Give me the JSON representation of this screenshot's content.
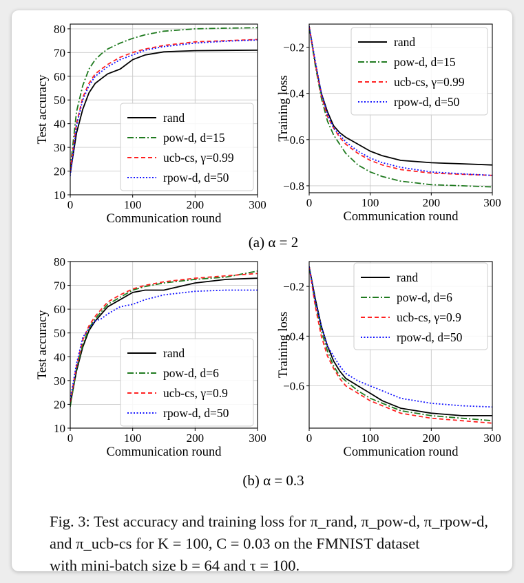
{
  "figure": {
    "subcaption_a": "(a) α = 2",
    "subcaption_b": "(b) α = 0.3",
    "caption_lines": [
      "Fig. 3: Test accuracy and training loss for π_rand, π_pow-d, π_rpow-d,",
      "and π_ucb-cs for K = 100, C = 0.03 on the FMNIST dataset",
      "with mini-batch size b = 64 and τ = 100."
    ]
  },
  "colors": {
    "rand": "#000000",
    "powd": "#1f7a1f",
    "ucb": "#ff2020",
    "rpowd": "#1414ff"
  },
  "chart_data": [
    {
      "id": "a-acc",
      "type": "line",
      "xlabel": "Communication round",
      "ylabel": "Test accuracy",
      "xlim": [
        0,
        300
      ],
      "ylim": [
        10,
        82
      ],
      "xticks": [
        0,
        100,
        200,
        300
      ],
      "yticks": [
        10,
        20,
        30,
        40,
        50,
        60,
        70,
        80
      ],
      "grid": true,
      "legend": "lower-right",
      "x": [
        0,
        10,
        20,
        30,
        40,
        50,
        60,
        80,
        100,
        120,
        150,
        200,
        250,
        300
      ],
      "series": [
        {
          "name": "rand",
          "key": "rand",
          "style": "solid",
          "values": [
            19,
            36,
            46,
            53,
            57,
            59,
            61,
            63,
            67,
            69,
            70.3,
            70.8,
            70.9,
            71
          ]
        },
        {
          "name": "pow-d, d=15",
          "key": "powd",
          "style": "dashdot",
          "values": [
            21,
            45,
            56,
            63,
            67,
            69.5,
            71.5,
            74,
            76,
            77.5,
            79,
            80,
            80.3,
            80.5
          ]
        },
        {
          "name": "ucb-cs, γ=0.99",
          "key": "ucb",
          "style": "dashed",
          "values": [
            20,
            40,
            51,
            57,
            61,
            63,
            65,
            68,
            70,
            71.5,
            73,
            74.5,
            75,
            75.5
          ]
        },
        {
          "name": "rpow-d, d=50",
          "key": "rpowd",
          "style": "dotted",
          "values": [
            18,
            39,
            50,
            56,
            60,
            62,
            64,
            67,
            69,
            71,
            72.5,
            74,
            74.8,
            75.3
          ]
        }
      ]
    },
    {
      "id": "a-loss",
      "type": "line",
      "xlabel": "Communication round",
      "ylabel": "Training loss",
      "xlim": [
        0,
        300
      ],
      "ylim": [
        -0.83,
        -0.1
      ],
      "xticks": [
        0,
        100,
        200,
        300
      ],
      "yticks": [
        -0.2,
        -0.4,
        -0.6,
        -0.8
      ],
      "grid": true,
      "legend": "top-right",
      "x": [
        0,
        10,
        20,
        30,
        40,
        50,
        60,
        80,
        100,
        120,
        150,
        200,
        250,
        300
      ],
      "series": [
        {
          "name": "rand",
          "key": "rand",
          "style": "solid",
          "values": [
            -0.11,
            -0.27,
            -0.4,
            -0.48,
            -0.54,
            -0.57,
            -0.59,
            -0.62,
            -0.65,
            -0.67,
            -0.69,
            -0.7,
            -0.705,
            -0.71
          ]
        },
        {
          "name": "pow-d, d=15",
          "key": "powd",
          "style": "dashdot",
          "values": [
            -0.11,
            -0.28,
            -0.42,
            -0.52,
            -0.58,
            -0.62,
            -0.66,
            -0.71,
            -0.74,
            -0.76,
            -0.78,
            -0.795,
            -0.8,
            -0.805
          ]
        },
        {
          "name": "ucb-cs, γ=0.99",
          "key": "ucb",
          "style": "dashed",
          "values": [
            -0.11,
            -0.27,
            -0.41,
            -0.5,
            -0.55,
            -0.59,
            -0.62,
            -0.66,
            -0.69,
            -0.71,
            -0.73,
            -0.745,
            -0.75,
            -0.755
          ]
        },
        {
          "name": "rpow-d, d=50",
          "key": "rpowd",
          "style": "dotted",
          "values": [
            -0.11,
            -0.26,
            -0.4,
            -0.49,
            -0.55,
            -0.58,
            -0.61,
            -0.65,
            -0.68,
            -0.7,
            -0.72,
            -0.74,
            -0.748,
            -0.755
          ]
        }
      ]
    },
    {
      "id": "b-acc",
      "type": "line",
      "xlabel": "Communication round",
      "ylabel": "Test accuracy",
      "xlim": [
        0,
        300
      ],
      "ylim": [
        10,
        80
      ],
      "xticks": [
        0,
        100,
        200,
        300
      ],
      "yticks": [
        10,
        20,
        30,
        40,
        50,
        60,
        70,
        80
      ],
      "grid": true,
      "legend": "lower-right",
      "x": [
        0,
        10,
        20,
        30,
        40,
        50,
        60,
        80,
        100,
        120,
        150,
        200,
        250,
        300
      ],
      "series": [
        {
          "name": "rand",
          "key": "rand",
          "style": "solid",
          "values": [
            20,
            34,
            44,
            51,
            55,
            58,
            61,
            64,
            67,
            68,
            68,
            71,
            72.5,
            73
          ]
        },
        {
          "name": "pow-d, d=6",
          "key": "powd",
          "style": "dashdot",
          "values": [
            19,
            35,
            45,
            52,
            56,
            59,
            62,
            65,
            68,
            69.5,
            71,
            72.5,
            73.5,
            76
          ]
        },
        {
          "name": "ucb-cs, γ=0.9",
          "key": "ucb",
          "style": "dashed",
          "values": [
            21,
            36,
            47,
            53,
            57,
            60,
            63,
            66,
            68.5,
            70,
            71.5,
            73,
            74,
            75
          ]
        },
        {
          "name": "rpow-d, d=50",
          "key": "rpowd",
          "style": "dotted",
          "values": [
            22,
            37,
            48,
            52,
            55,
            56,
            58,
            61,
            62,
            64,
            66,
            67.5,
            68,
            68
          ]
        }
      ]
    },
    {
      "id": "b-loss",
      "type": "line",
      "xlabel": "Communication round",
      "ylabel": "Training loss",
      "xlim": [
        0,
        300
      ],
      "ylim": [
        -0.77,
        -0.1
      ],
      "xticks": [
        0,
        100,
        200,
        300
      ],
      "yticks": [
        -0.2,
        -0.4,
        -0.6
      ],
      "grid": true,
      "legend": "top-right",
      "x": [
        0,
        10,
        20,
        30,
        40,
        50,
        60,
        80,
        100,
        120,
        150,
        200,
        250,
        300
      ],
      "series": [
        {
          "name": "rand",
          "key": "rand",
          "style": "solid",
          "values": [
            -0.12,
            -0.25,
            -0.36,
            -0.44,
            -0.5,
            -0.54,
            -0.57,
            -0.6,
            -0.63,
            -0.66,
            -0.69,
            -0.71,
            -0.72,
            -0.72
          ]
        },
        {
          "name": "pow-d, d=6",
          "key": "powd",
          "style": "dashdot",
          "values": [
            -0.12,
            -0.27,
            -0.38,
            -0.46,
            -0.52,
            -0.56,
            -0.58,
            -0.62,
            -0.65,
            -0.67,
            -0.7,
            -0.72,
            -0.73,
            -0.74
          ]
        },
        {
          "name": "ucb-cs, γ=0.9",
          "key": "ucb",
          "style": "dashed",
          "values": [
            -0.12,
            -0.28,
            -0.4,
            -0.48,
            -0.53,
            -0.57,
            -0.6,
            -0.63,
            -0.66,
            -0.68,
            -0.71,
            -0.73,
            -0.74,
            -0.75
          ]
        },
        {
          "name": "rpow-d, d=50",
          "key": "rpowd",
          "style": "dotted",
          "values": [
            -0.12,
            -0.26,
            -0.36,
            -0.44,
            -0.48,
            -0.52,
            -0.55,
            -0.58,
            -0.6,
            -0.62,
            -0.65,
            -0.67,
            -0.68,
            -0.685
          ]
        }
      ]
    }
  ]
}
